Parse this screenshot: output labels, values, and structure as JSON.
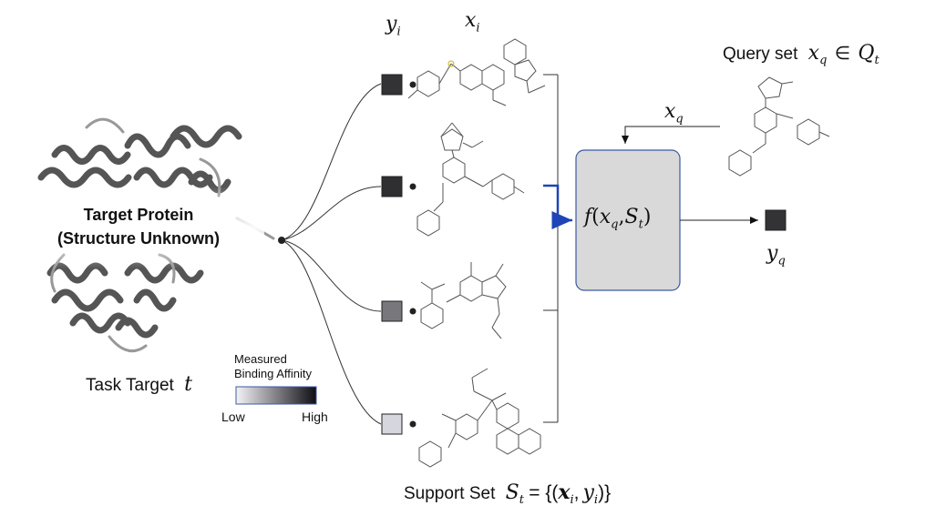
{
  "protein": {
    "title_line1": "Target Protein",
    "title_line2": "(Structure Unknown)"
  },
  "task_target": {
    "label": "Task Target",
    "symbol": "t"
  },
  "legend": {
    "title_line1": "Measured",
    "title_line2": "Binding Affinity",
    "low": "Low",
    "high": "High",
    "low_color": "#f4f4f8",
    "high_color": "#0d0d14"
  },
  "column_headers": {
    "y": "y",
    "y_sub": "i",
    "x": "x",
    "x_sub": "i"
  },
  "support_items": [
    {
      "affinity_level": 0.85,
      "color": "#333336"
    },
    {
      "affinity_level": 0.9,
      "color": "#2f2f32"
    },
    {
      "affinity_level": 0.55,
      "color": "#77777c"
    },
    {
      "affinity_level": 0.15,
      "color": "#d6d6de"
    }
  ],
  "function_box": {
    "f": "f",
    "open": "(",
    "x": "x",
    "x_sub": "q",
    "comma": ",",
    "s": "S",
    "s_sub": "t",
    "close": ")"
  },
  "query": {
    "label": "Query set",
    "x": "x",
    "x_sub": "q",
    "in": "∈",
    "set": "Q",
    "set_sub": "t"
  },
  "arrow_label": {
    "x": "x",
    "x_sub": "q"
  },
  "output": {
    "y": "y",
    "y_sub": "q",
    "color": "#333336"
  },
  "support_set": {
    "label": "Support Set",
    "s": "S",
    "s_sub": "t",
    "eq": "= {(",
    "x": "x",
    "x_sub": "i",
    "comma": ",",
    "y": "y",
    "y_sub": "i",
    "close": ")}"
  },
  "colors": {
    "accent_arrow": "#1f44b8",
    "box_fill": "#d9d9d9",
    "box_border": "#3b5aa3",
    "molecule_stroke": "#555555"
  }
}
